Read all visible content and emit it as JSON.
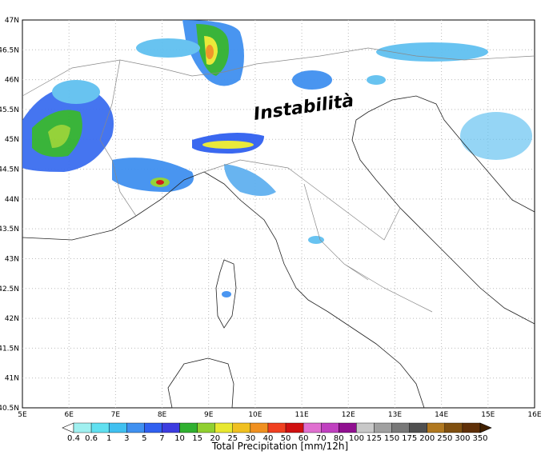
{
  "map": {
    "annotation": "Instabilità",
    "lat_labels": [
      "47N",
      "46.5N",
      "46N",
      "45.5N",
      "45N",
      "44.5N",
      "44N",
      "43.5N",
      "43N",
      "42.5N",
      "42N",
      "41.5N",
      "41N",
      "40.5N"
    ],
    "lon_labels": [
      "5E",
      "6E",
      "7E",
      "8E",
      "9E",
      "10E",
      "11E",
      "12E",
      "13E",
      "14E",
      "15E",
      "16E"
    ]
  },
  "colorbar": {
    "title": "Total Precipitation [mm/12h]",
    "labels": [
      0.4,
      0.6,
      1,
      3,
      5,
      7,
      10,
      15,
      20,
      25,
      30,
      40,
      50,
      60,
      70,
      80,
      100,
      125,
      150,
      175,
      200,
      250,
      300,
      350
    ]
  }
}
